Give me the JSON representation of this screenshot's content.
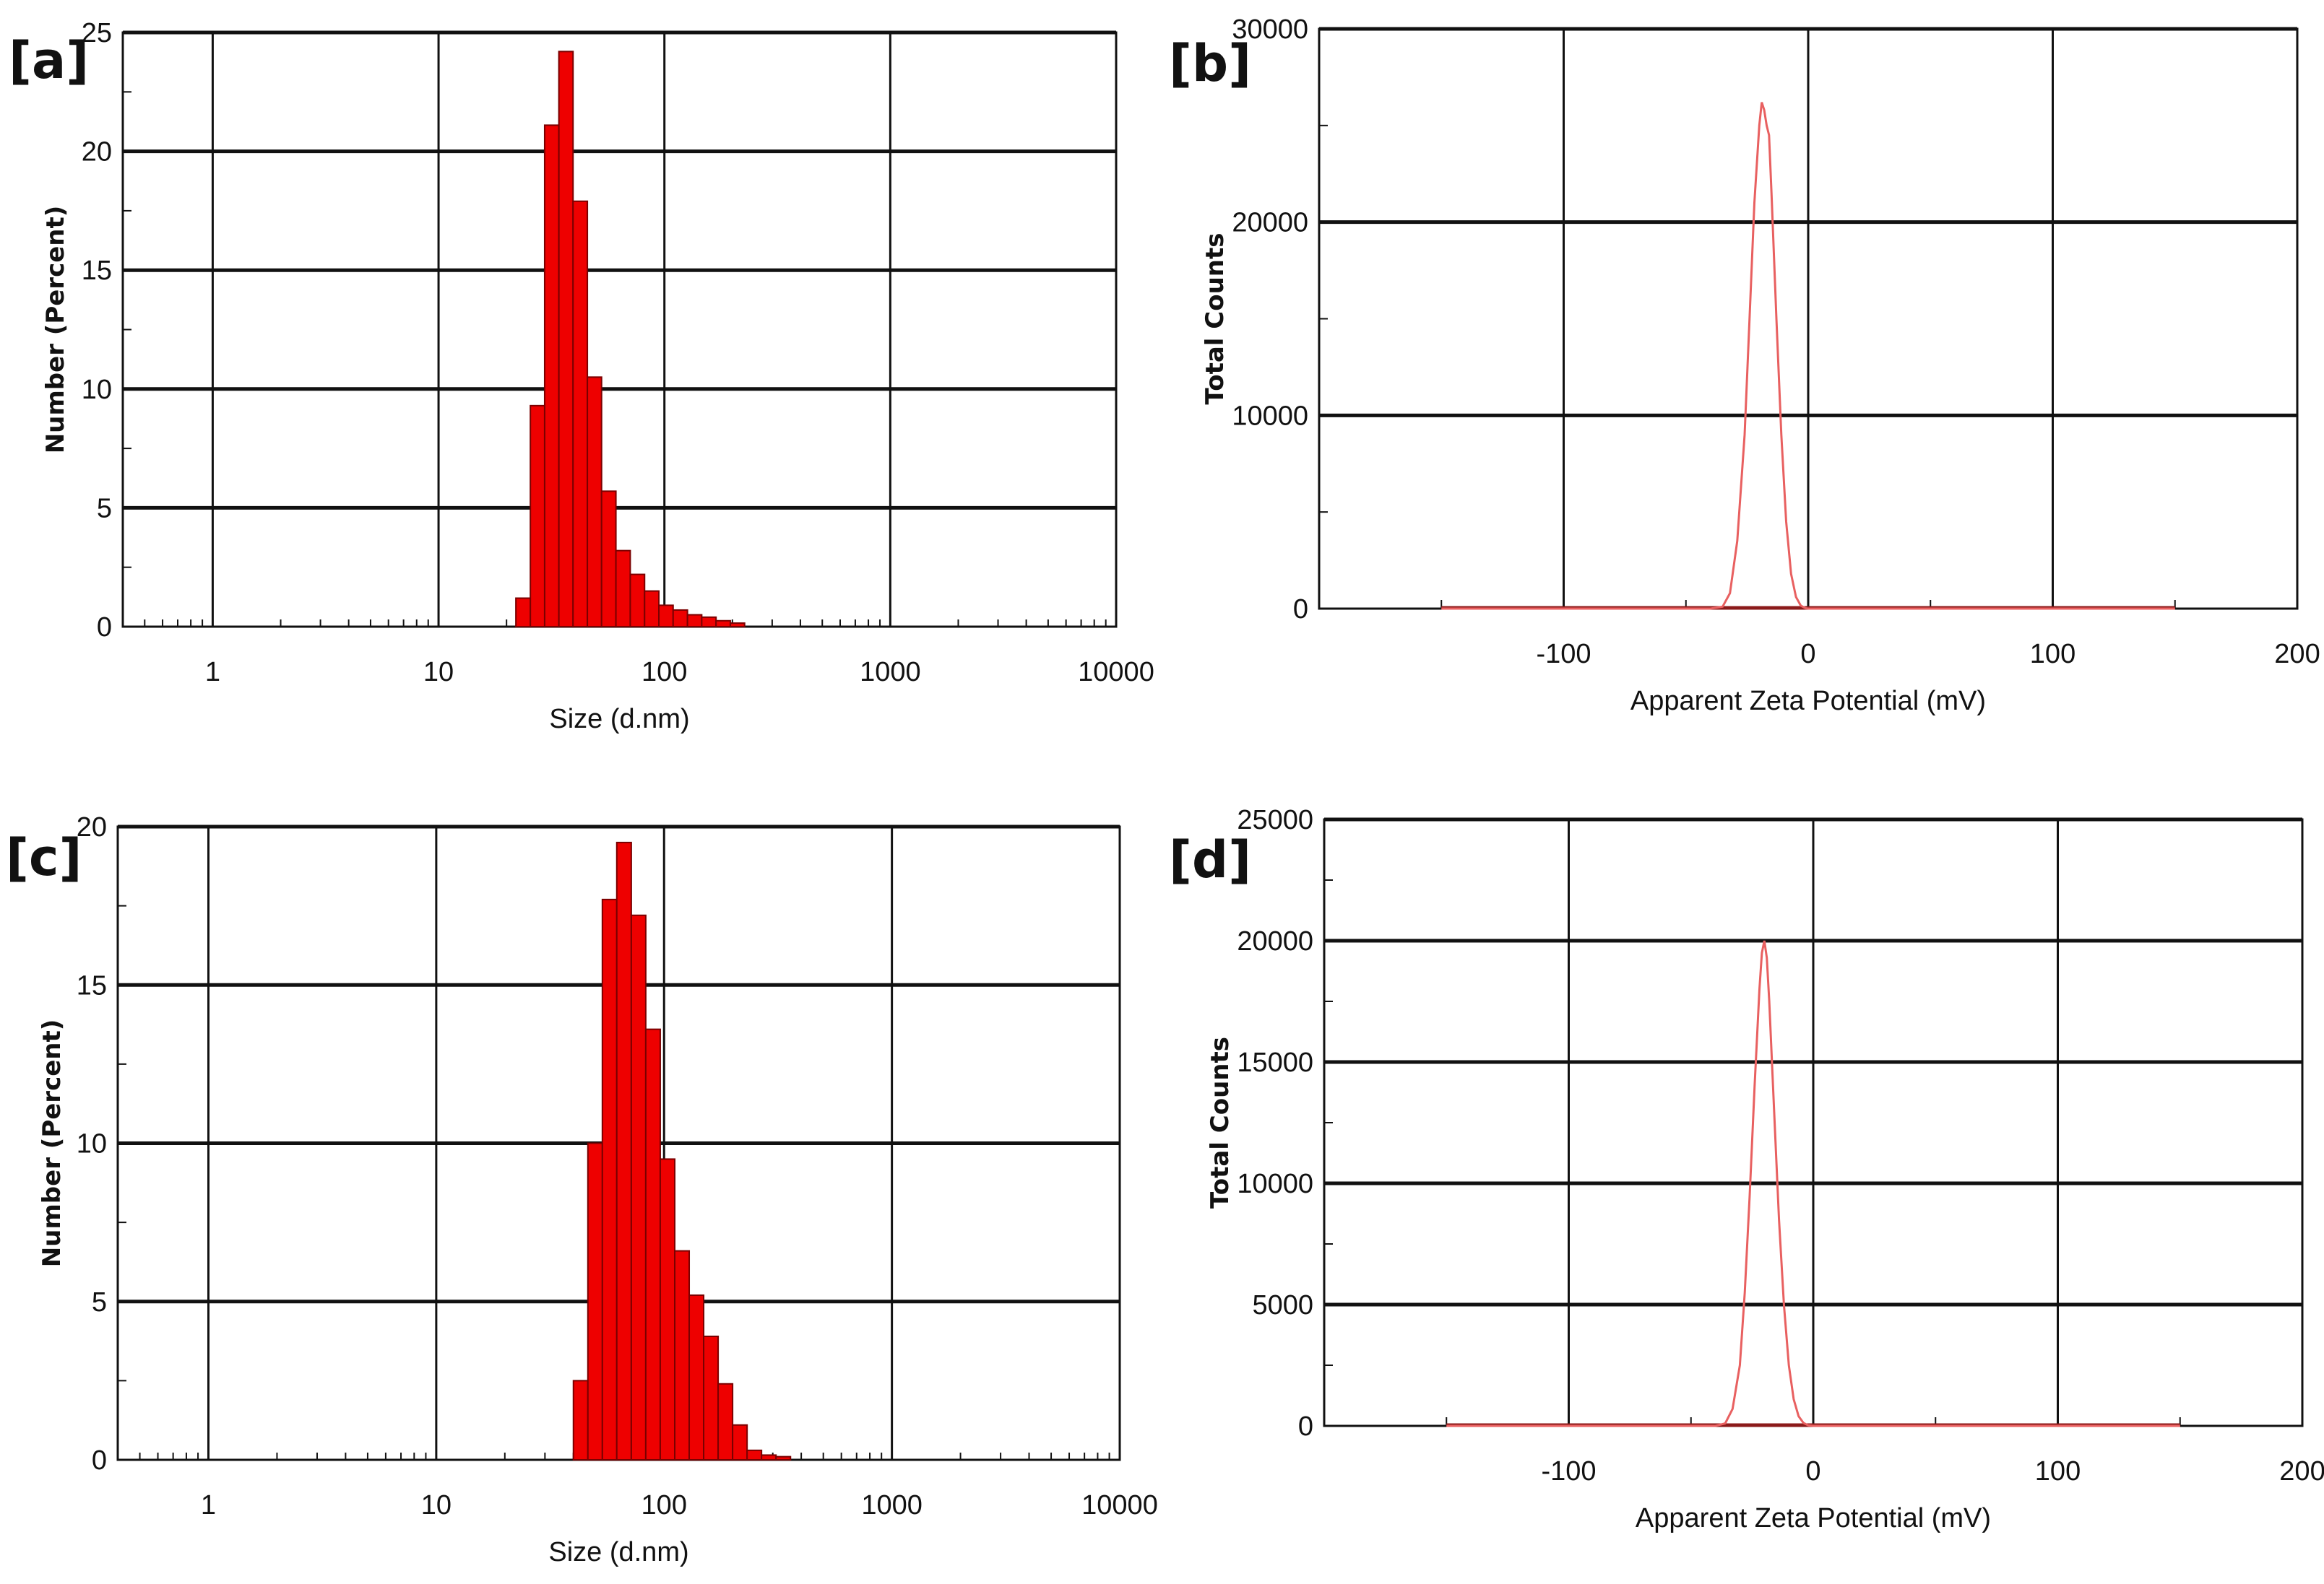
{
  "colors": {
    "bar_fill": "#ee0000",
    "bar_edge": "#7a0000",
    "line": "#e86060",
    "baseline": "#8b1a1a",
    "grid": "#111111"
  },
  "chart_data": [
    {
      "panel": "[a]",
      "type": "bar",
      "xscale": "log",
      "xlim": [
        0.4,
        10000
      ],
      "ylim": [
        0,
        25
      ],
      "xticks": [
        1,
        10,
        100,
        1000,
        10000
      ],
      "xtick_labels": [
        "1",
        "10",
        "100",
        "1000",
        "10000"
      ],
      "yticks": [
        0,
        5,
        10,
        15,
        20,
        25
      ],
      "ytick_labels": [
        "0",
        "5",
        "10",
        "15",
        "20",
        "25"
      ],
      "xlabel": "Size (d.nm)",
      "ylabel": "Number (Percent)",
      "grid": true,
      "bin_edges": [
        22.0,
        25.5,
        29.5,
        34.1,
        39.4,
        45.6,
        52.7,
        61.0,
        70.6,
        81.7,
        94.5,
        109.3,
        126.5,
        146.3,
        169.3,
        195.8,
        226.5
      ],
      "values": [
        1.2,
        9.3,
        21.1,
        24.2,
        17.9,
        10.5,
        5.7,
        3.2,
        2.2,
        1.5,
        0.9,
        0.7,
        0.5,
        0.4,
        0.25,
        0.15
      ]
    },
    {
      "panel": "[b]",
      "type": "line",
      "xlim": [
        -200,
        200
      ],
      "ylim": [
        0,
        30000
      ],
      "xticks": [
        -100,
        0,
        100,
        200
      ],
      "xtick_labels": [
        "-100",
        "0",
        "100",
        "200"
      ],
      "yticks": [
        0,
        10000,
        20000,
        30000
      ],
      "ytick_labels": [
        "0",
        "10000",
        "20000",
        "30000"
      ],
      "xlabel": "Apparent Zeta Potential (mV)",
      "ylabel": "Total Counts",
      "grid": true,
      "x": [
        -150,
        -40,
        -35,
        -32,
        -29,
        -26,
        -24,
        -22,
        -20,
        -19,
        -18,
        -17,
        -16,
        -15,
        -13,
        -11,
        -9,
        -7,
        -5,
        -3,
        -1,
        0,
        150
      ],
      "y": [
        0,
        0,
        100,
        800,
        3500,
        9000,
        15000,
        21000,
        25000,
        26200,
        25800,
        25000,
        24500,
        21500,
        15000,
        9000,
        4500,
        1800,
        600,
        150,
        20,
        0,
        0
      ]
    },
    {
      "panel": "[c]",
      "type": "bar",
      "xscale": "log",
      "xlim": [
        0.4,
        10000
      ],
      "ylim": [
        0,
        20
      ],
      "xticks": [
        1,
        10,
        100,
        1000,
        10000
      ],
      "xtick_labels": [
        "1",
        "10",
        "100",
        "1000",
        "10000"
      ],
      "yticks": [
        0,
        5,
        10,
        15,
        20
      ],
      "ytick_labels": [
        "0",
        "5",
        "10",
        "15",
        "20"
      ],
      "xlabel": "Size (d.nm)",
      "ylabel": "Number (Percent)",
      "grid": true,
      "bin_edges": [
        40.0,
        46.3,
        53.6,
        62.0,
        71.8,
        83.1,
        96.2,
        111.4,
        128.9,
        149.2,
        172.7,
        199.9,
        231.4,
        267.8,
        310.0,
        358.8
      ],
      "values": [
        2.5,
        10.0,
        17.7,
        19.5,
        17.2,
        13.6,
        9.5,
        6.6,
        5.2,
        3.9,
        2.4,
        1.1,
        0.3,
        0.15,
        0.1
      ]
    },
    {
      "panel": "[d]",
      "type": "line",
      "xlim": [
        -200,
        200
      ],
      "ylim": [
        0,
        25000
      ],
      "xticks": [
        -100,
        0,
        100,
        200
      ],
      "xtick_labels": [
        "-100",
        "0",
        "100",
        "200"
      ],
      "yticks": [
        0,
        5000,
        10000,
        15000,
        20000,
        25000
      ],
      "ytick_labels": [
        "0",
        "5000",
        "10000",
        "15000",
        "20000",
        "25000"
      ],
      "xlabel": "Apparent Zeta Potential (mV)",
      "ylabel": "Total Counts",
      "grid": true,
      "x": [
        -150,
        -40,
        -36,
        -33,
        -30,
        -28,
        -26,
        -24,
        -22,
        -21,
        -20,
        -19,
        -18,
        -16,
        -14,
        -12,
        -10,
        -8,
        -6,
        -4,
        -2,
        0,
        150
      ],
      "y": [
        0,
        0,
        100,
        700,
        2500,
        5500,
        9500,
        14000,
        18000,
        19500,
        20000,
        19300,
        17500,
        13000,
        8500,
        5000,
        2500,
        1100,
        400,
        120,
        20,
        0,
        0
      ]
    }
  ]
}
